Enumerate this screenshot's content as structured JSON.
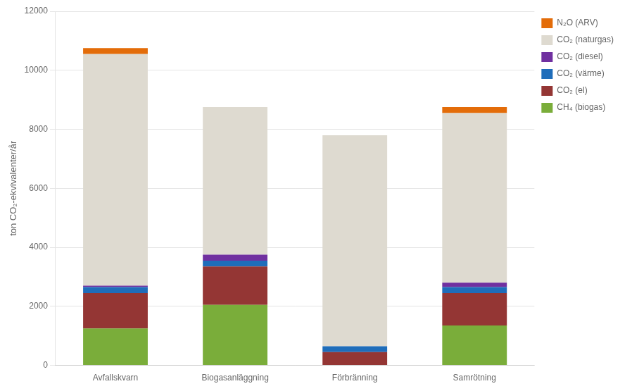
{
  "chart_data": {
    "type": "bar",
    "stacked": true,
    "categories": [
      "Avfallskvarn",
      "Biogasanläggning",
      "Förbränning",
      "Samrötning"
    ],
    "series": [
      {
        "name": "CH₄ (biogas)",
        "color": "#7aad3a",
        "values": [
          1250,
          2050,
          0,
          1350
        ]
      },
      {
        "name": "CO₂ (el)",
        "color": "#943634",
        "values": [
          1200,
          1300,
          450,
          1100
        ]
      },
      {
        "name": "CO₂ (värme)",
        "color": "#1f6dba",
        "values": [
          200,
          200,
          200,
          200
        ]
      },
      {
        "name": "CO₂ (diesel)",
        "color": "#7030a0",
        "values": [
          50,
          200,
          0,
          150
        ]
      },
      {
        "name": "CO₂ (naturgas)",
        "color": "#dedad0",
        "values": [
          7850,
          5000,
          7150,
          5750
        ]
      },
      {
        "name": "N₂O (ARV)",
        "color": "#e36c09",
        "values": [
          200,
          0,
          0,
          200
        ]
      }
    ],
    "ylabel": "ton CO₂-ekvivalenter/år",
    "ylim": [
      0,
      12000
    ],
    "yticks": [
      0,
      2000,
      4000,
      6000,
      8000,
      10000,
      12000
    ],
    "grid": true,
    "legend": "right"
  }
}
